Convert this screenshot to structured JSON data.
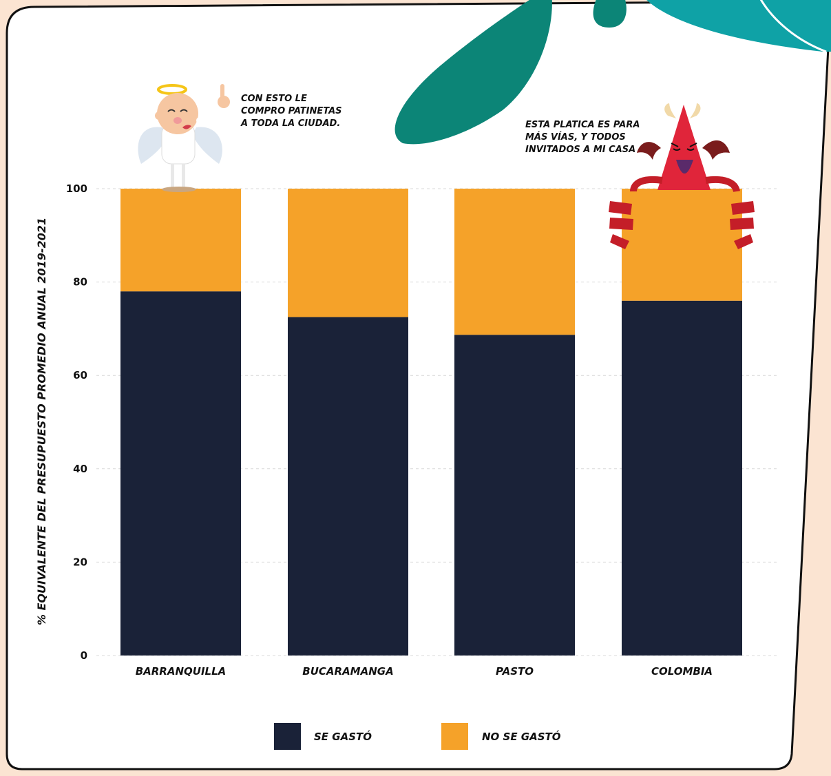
{
  "chart_data": {
    "type": "bar",
    "stacked": true,
    "categories": [
      "BARRANQUILLA",
      "BUCARAMANGA",
      "PASTO",
      "COLOMBIA"
    ],
    "series": [
      {
        "name": "SE GASTÓ",
        "values": [
          78,
          72.5,
          68.7,
          76
        ],
        "color": "#1a2238"
      },
      {
        "name": "NO SE GASTÓ",
        "values": [
          22,
          27.5,
          31.3,
          24
        ],
        "color": "#f5a229"
      }
    ],
    "title": "",
    "xlabel": "",
    "ylabel": "% EQUIVALENTE DEL PRESUPUESTO PROMEDIO ANUAL 2019-2021",
    "ylim": [
      0,
      100
    ],
    "yticks": [
      0,
      20,
      40,
      60,
      80,
      100
    ],
    "grid": true,
    "legend_position": "bottom"
  },
  "annotations": {
    "angel": [
      "CON ESTO LE",
      "COMPRO PATINETAS",
      "A TODA LA CIUDAD."
    ],
    "devil": [
      "ESTA PLATICA ES PARA",
      "MÁS VÍAS, Y TODOS",
      "INVITADOS A MI CASA"
    ]
  },
  "colors": {
    "background": "#fbe4d2",
    "card": "#ffffff",
    "teal_dark": "#0c8577",
    "teal_light": "#0fa2a6",
    "devil_red": "#e0253a"
  },
  "illustrations": [
    "angel-character",
    "devil-character",
    "leaf-decoration"
  ]
}
